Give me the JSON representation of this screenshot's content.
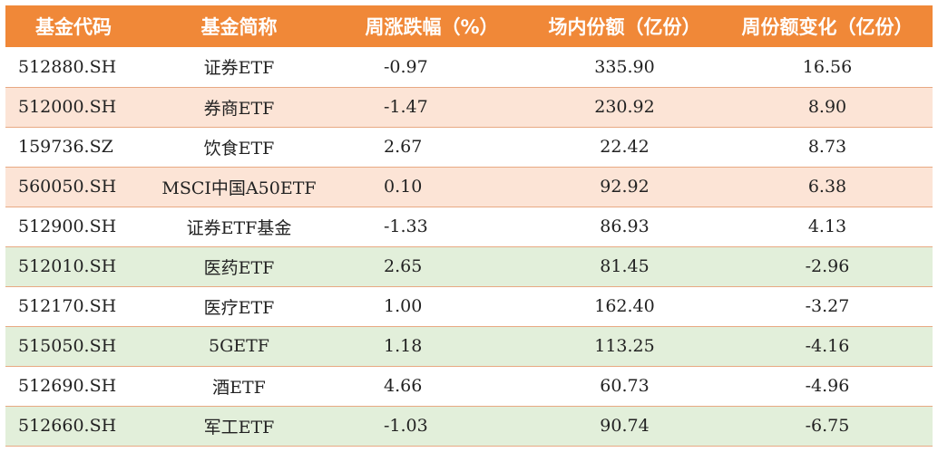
{
  "table": {
    "headers": [
      "基金代码",
      "基金简称",
      "周涨跌幅（%）",
      "场内份额（亿份）",
      "周份额变化（亿份）"
    ],
    "rows": [
      {
        "code": "512880.SH",
        "name": "证券ETF",
        "weekly_change_pct": "-0.97",
        "shares": "335.90",
        "share_change": "16.56",
        "bg": "white"
      },
      {
        "code": "512000.SH",
        "name": "券商ETF",
        "weekly_change_pct": "-1.47",
        "shares": "230.92",
        "share_change": "8.90",
        "bg": "peach"
      },
      {
        "code": "159736.SZ",
        "name": "饮食ETF",
        "weekly_change_pct": "2.67",
        "shares": "22.42",
        "share_change": "8.73",
        "bg": "white"
      },
      {
        "code": "560050.SH",
        "name": "MSCI中国A50ETF",
        "weekly_change_pct": "0.10",
        "shares": "92.92",
        "share_change": "6.38",
        "bg": "peach"
      },
      {
        "code": "512900.SH",
        "name": "证券ETF基金",
        "weekly_change_pct": "-1.33",
        "shares": "86.93",
        "share_change": "4.13",
        "bg": "white"
      },
      {
        "code": "512010.SH",
        "name": "医药ETF",
        "weekly_change_pct": "2.65",
        "shares": "81.45",
        "share_change": "-2.96",
        "bg": "green"
      },
      {
        "code": "512170.SH",
        "name": "医疗ETF",
        "weekly_change_pct": "1.00",
        "shares": "162.40",
        "share_change": "-3.27",
        "bg": "white"
      },
      {
        "code": "515050.SH",
        "name": "5GETF",
        "weekly_change_pct": "1.18",
        "shares": "113.25",
        "share_change": "-4.16",
        "bg": "green"
      },
      {
        "code": "512690.SH",
        "name": "酒ETF",
        "weekly_change_pct": "4.66",
        "shares": "60.73",
        "share_change": "-4.96",
        "bg": "white"
      },
      {
        "code": "512660.SH",
        "name": "军工ETF",
        "weekly_change_pct": "-1.03",
        "shares": "90.74",
        "share_change": "-6.75",
        "bg": "green"
      }
    ]
  },
  "colors": {
    "header_bg": "#F08838",
    "header_text": "#FFFFFF",
    "row_white": "#FFFFFF",
    "row_peach": "#FCE4D6",
    "row_green": "#E2EFDA",
    "divider": "#E8A983"
  }
}
